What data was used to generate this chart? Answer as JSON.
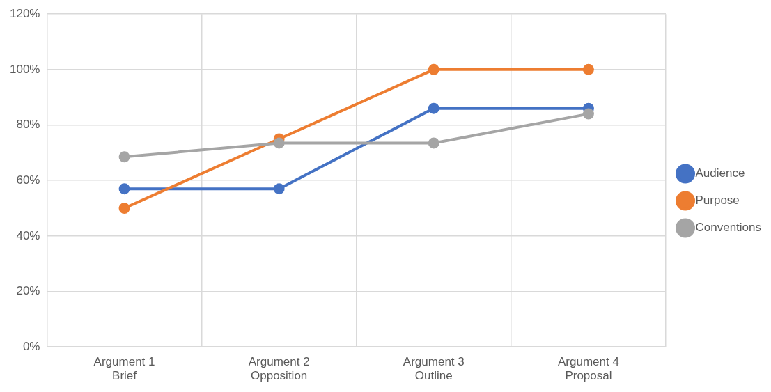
{
  "chart_data": {
    "type": "line",
    "categories": [
      "Argument 1\nBrief",
      "Argument 2\nOpposition",
      "Argument 3\nOutline",
      "Argument 4\nProposal"
    ],
    "series": [
      {
        "name": "Audience",
        "color": "#4472c4",
        "values": [
          57,
          57,
          86,
          86
        ]
      },
      {
        "name": "Purpose",
        "color": "#ed7d31",
        "values": [
          50,
          75,
          100,
          100
        ]
      },
      {
        "name": "Conventions",
        "color": "#a5a5a5",
        "values": [
          68.5,
          73.5,
          73.5,
          84
        ]
      }
    ],
    "ylim": [
      0,
      120
    ],
    "yticks": [
      {
        "value": 0,
        "label": "0%"
      },
      {
        "value": 20,
        "label": "20%"
      },
      {
        "value": 40,
        "label": "40%"
      },
      {
        "value": 60,
        "label": "60%"
      },
      {
        "value": 80,
        "label": "80%"
      },
      {
        "value": 100,
        "label": "100%"
      },
      {
        "value": 120,
        "label": "120%"
      }
    ],
    "grid": true,
    "legend": "right",
    "marker": "circle",
    "line_style": "solid"
  }
}
